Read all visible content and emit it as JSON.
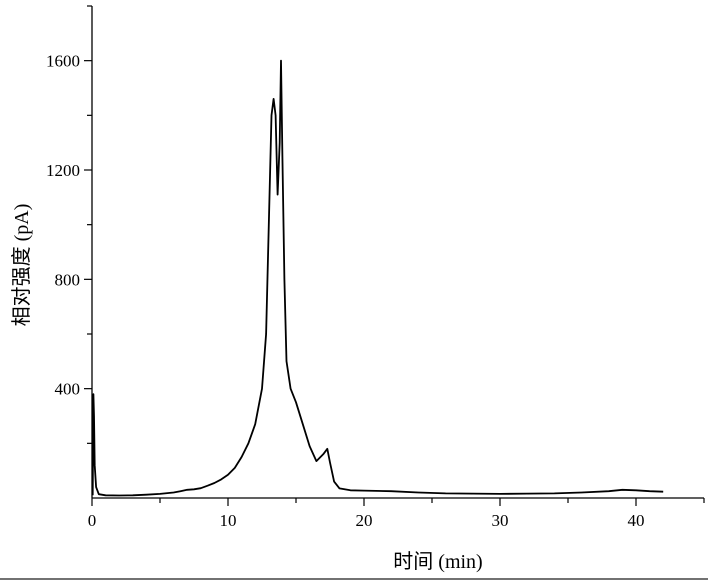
{
  "chart_data": {
    "type": "line",
    "title": "",
    "xlabel": "时间 (min)",
    "ylabel": "相对强度 (pA)",
    "xlim": [
      0,
      45
    ],
    "ylim": [
      0,
      1800
    ],
    "x_ticks": [
      0,
      10,
      20,
      30,
      40
    ],
    "y_ticks": [
      400,
      800,
      1200,
      1600
    ],
    "grid": false,
    "legend": "none",
    "series": [
      {
        "color": "#000000",
        "points": [
          [
            0.05,
            10
          ],
          [
            0.1,
            380
          ],
          [
            0.15,
            300
          ],
          [
            0.2,
            120
          ],
          [
            0.3,
            40
          ],
          [
            0.5,
            14
          ],
          [
            1.0,
            10
          ],
          [
            2.0,
            9
          ],
          [
            3.0,
            10
          ],
          [
            4.0,
            12
          ],
          [
            5.0,
            15
          ],
          [
            6.0,
            20
          ],
          [
            6.5,
            25
          ],
          [
            7.0,
            30
          ],
          [
            7.5,
            32
          ],
          [
            8.0,
            36
          ],
          [
            8.5,
            45
          ],
          [
            9.0,
            55
          ],
          [
            9.5,
            68
          ],
          [
            10.0,
            85
          ],
          [
            10.5,
            110
          ],
          [
            11.0,
            150
          ],
          [
            11.5,
            200
          ],
          [
            12.0,
            270
          ],
          [
            12.5,
            400
          ],
          [
            12.8,
            600
          ],
          [
            13.0,
            1000
          ],
          [
            13.2,
            1400
          ],
          [
            13.35,
            1460
          ],
          [
            13.5,
            1400
          ],
          [
            13.65,
            1110
          ],
          [
            13.8,
            1300
          ],
          [
            13.9,
            1600
          ],
          [
            14.0,
            1250
          ],
          [
            14.15,
            800
          ],
          [
            14.3,
            500
          ],
          [
            14.6,
            400
          ],
          [
            15.0,
            350
          ],
          [
            15.5,
            270
          ],
          [
            16.0,
            190
          ],
          [
            16.5,
            135
          ],
          [
            17.0,
            160
          ],
          [
            17.3,
            180
          ],
          [
            17.5,
            130
          ],
          [
            17.8,
            60
          ],
          [
            18.2,
            35
          ],
          [
            19.0,
            28
          ],
          [
            20.0,
            27
          ],
          [
            22.0,
            25
          ],
          [
            24.0,
            20
          ],
          [
            26.0,
            17
          ],
          [
            28.0,
            16
          ],
          [
            30.0,
            15
          ],
          [
            32.0,
            16
          ],
          [
            34.0,
            17
          ],
          [
            36.0,
            20
          ],
          [
            38.0,
            25
          ],
          [
            39.0,
            30
          ],
          [
            40.0,
            28
          ],
          [
            41.0,
            25
          ],
          [
            42.0,
            23
          ]
        ]
      }
    ]
  }
}
